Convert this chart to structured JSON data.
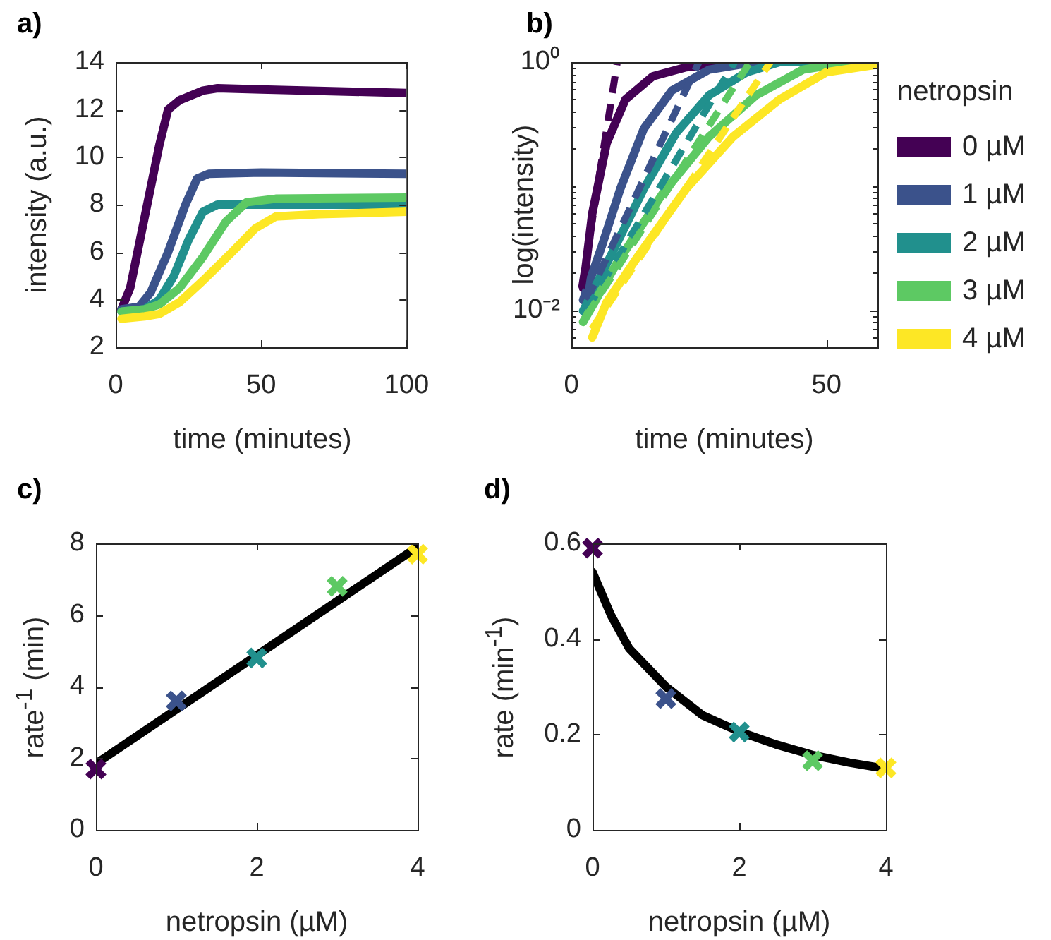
{
  "chart_data": [
    {
      "type": "line",
      "title": "a)",
      "xlabel": "time (minutes)",
      "ylabel": "intensity (a.u.)",
      "xlim": [
        0,
        100
      ],
      "xticks": [
        0,
        50,
        100
      ],
      "ylim": [
        2,
        14
      ],
      "yticks": [
        2,
        4,
        6,
        8,
        10,
        12,
        14
      ],
      "grid": false,
      "series": [
        {
          "color": "#440154",
          "x": [
            2,
            5,
            10,
            15,
            18,
            22,
            30,
            35,
            50,
            100
          ],
          "values": [
            3.6,
            4.5,
            7.5,
            10.5,
            12,
            12.4,
            12.8,
            12.9,
            12.85,
            12.7
          ]
        },
        {
          "color": "#3b528b",
          "x": [
            2,
            8,
            12,
            18,
            24,
            28,
            32,
            50,
            100
          ],
          "values": [
            3.6,
            3.7,
            4.3,
            6,
            8,
            9.1,
            9.3,
            9.35,
            9.3
          ]
        },
        {
          "color": "#21908d",
          "x": [
            2,
            10,
            15,
            20,
            25,
            30,
            35,
            50,
            100
          ],
          "values": [
            3.5,
            3.6,
            4,
            5,
            6.5,
            7.7,
            8,
            8,
            8
          ]
        },
        {
          "color": "#5dc963",
          "x": [
            2,
            10,
            15,
            22,
            30,
            38,
            45,
            55,
            100
          ],
          "values": [
            3.5,
            3.6,
            3.8,
            4.5,
            5.8,
            7.3,
            8.1,
            8.25,
            8.3
          ]
        },
        {
          "color": "#fde725",
          "x": [
            2,
            10,
            15,
            22,
            30,
            40,
            48,
            55,
            70,
            100
          ],
          "values": [
            3.2,
            3.3,
            3.4,
            3.9,
            4.8,
            6,
            7,
            7.5,
            7.6,
            7.7
          ]
        }
      ]
    },
    {
      "type": "line",
      "title": "b)",
      "xlabel": "time (minutes)",
      "ylabel": "log(intensity)",
      "log": "y",
      "xlim": [
        0,
        60
      ],
      "xticks": [
        0,
        50
      ],
      "ylim": [
        0.005,
        1
      ],
      "yticks": [
        {
          "value": 0.005,
          "label": null
        },
        {
          "value": 0.006,
          "label": null
        },
        {
          "value": 0.007,
          "label": null
        },
        {
          "value": 0.008,
          "label": null
        },
        {
          "value": 0.009,
          "label": null
        },
        {
          "value": 0.01,
          "label": "10⁻²"
        },
        {
          "value": 0.02,
          "label": null
        },
        {
          "value": 0.03,
          "label": null
        },
        {
          "value": 0.04,
          "label": null
        },
        {
          "value": 0.05,
          "label": null
        },
        {
          "value": 0.06,
          "label": null
        },
        {
          "value": 0.07,
          "label": null
        },
        {
          "value": 0.08,
          "label": null
        },
        {
          "value": 0.09,
          "label": null
        },
        {
          "value": 0.1,
          "label": null
        },
        {
          "value": 0.2,
          "label": null
        },
        {
          "value": 0.3,
          "label": null
        },
        {
          "value": 0.4,
          "label": null
        },
        {
          "value": 0.5,
          "label": null
        },
        {
          "value": 0.6,
          "label": null
        },
        {
          "value": 0.7,
          "label": null
        },
        {
          "value": 0.8,
          "label": null
        },
        {
          "value": 0.9,
          "label": null
        },
        {
          "value": 1,
          "label": "10⁰"
        }
      ],
      "grid": false,
      "legend": "right",
      "legend_title": "netropsin",
      "series": [
        {
          "name": "0 µM",
          "color": "#440154",
          "x": [
            2.3,
            4.1,
            6.9,
            10.6,
            16,
            22.5,
            31.7,
            60
          ],
          "values": [
            0.015,
            0.06,
            0.22,
            0.5,
            0.77,
            0.91,
            1,
            1
          ]
        },
        {
          "name": "1 µM",
          "color": "#3b528b",
          "x": [
            2.3,
            6,
            9.6,
            14.2,
            19.7,
            27,
            36
          ],
          "values": [
            0.012,
            0.033,
            0.095,
            0.29,
            0.59,
            0.87,
            1
          ]
        },
        {
          "name": "2 µM",
          "color": "#21908d",
          "x": [
            2.3,
            8.7,
            14.2,
            20.6,
            27,
            34.4,
            40.8,
            60
          ],
          "values": [
            0.0098,
            0.033,
            0.095,
            0.27,
            0.54,
            0.83,
            1,
            1
          ]
        },
        {
          "name": "3 µM",
          "color": "#5dc963",
          "x": [
            2.3,
            8.7,
            17.9,
            27,
            36.2,
            45.4,
            54.6
          ],
          "values": [
            0.008,
            0.023,
            0.087,
            0.25,
            0.54,
            0.87,
            1
          ]
        },
        {
          "name": "4 µM",
          "color": "#fde725",
          "x": [
            4.1,
            6.9,
            13.3,
            22.5,
            31.7,
            40.8,
            50,
            59.6
          ],
          "values": [
            0.006,
            0.0115,
            0.028,
            0.095,
            0.25,
            0.5,
            0.83,
            0.95
          ]
        },
        {
          "color": "#440154",
          "line_style": "dashed",
          "x": [
            2,
            9
          ],
          "values": [
            0.015,
            1
          ]
        },
        {
          "color": "#3b528b",
          "line_style": "dashed",
          "x": [
            3,
            25
          ],
          "values": [
            0.012,
            1
          ]
        },
        {
          "color": "#21908d",
          "line_style": "dashed",
          "x": [
            3,
            32
          ],
          "values": [
            0.01,
            1
          ]
        },
        {
          "color": "#5dc963",
          "line_style": "dashed",
          "x": [
            3,
            35
          ],
          "values": [
            0.009,
            1
          ]
        },
        {
          "color": "#fde725",
          "line_style": "dashed",
          "x": [
            4,
            39
          ],
          "values": [
            0.007,
            1
          ]
        }
      ]
    },
    {
      "type": "scatter",
      "title": "c)",
      "xlabel": "netropsin (µM)",
      "ylabel": "rate$^{-1}$ (min)",
      "xlim": [
        0,
        4
      ],
      "xticks": [
        0,
        2,
        4
      ],
      "ylim": [
        0,
        8
      ],
      "yticks": [
        0,
        2,
        4,
        6,
        8
      ],
      "grid": false,
      "series": [
        {
          "type": "line",
          "color": "#000000",
          "x": [
            0,
            4
          ],
          "values": [
            1.85,
            7.9
          ]
        },
        {
          "type": "scatter",
          "marker": "cross",
          "x": [
            0,
            1,
            2,
            3,
            4
          ],
          "values": [
            1.7,
            3.6,
            4.8,
            6.8,
            7.7
          ],
          "colors": [
            "#440154",
            "#3b528b",
            "#21908d",
            "#5dc963",
            "#fde725"
          ]
        }
      ]
    },
    {
      "type": "scatter",
      "title": "d)",
      "xlabel": "netropsin (µM)",
      "ylabel": "rate (min$^{-1}$)",
      "xlim": [
        0,
        4
      ],
      "xticks": [
        0,
        2,
        4
      ],
      "ylim": [
        0,
        0.6
      ],
      "yticks": [
        0,
        0.2,
        0.4,
        0.6
      ],
      "grid": false,
      "series": [
        {
          "type": "line",
          "color": "#000000",
          "x": [
            0,
            0.25,
            0.5,
            1,
            1.5,
            2,
            2.5,
            3,
            3.5,
            4
          ],
          "values": [
            0.54,
            0.45,
            0.38,
            0.3,
            0.24,
            0.206,
            0.179,
            0.157,
            0.141,
            0.128
          ]
        },
        {
          "type": "scatter",
          "marker": "cross",
          "x": [
            0,
            1,
            2,
            3,
            4
          ],
          "values": [
            0.59,
            0.275,
            0.205,
            0.145,
            0.13
          ],
          "colors": [
            "#440154",
            "#3b528b",
            "#21908d",
            "#5dc963",
            "#fde725"
          ]
        }
      ]
    }
  ]
}
